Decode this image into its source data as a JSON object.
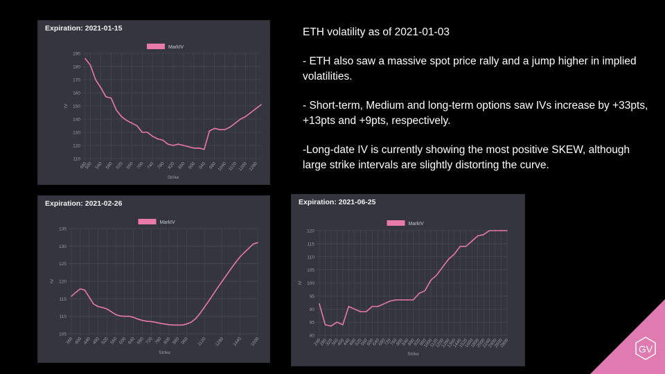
{
  "notes": {
    "title": "ETH volatility as of 2021-01-03",
    "bullets": [
      "- ETH also saw a massive spot price rally and a jump higher in implied volatilities.",
      "- Short-term, Medium and long-term options saw IVs increase by +33pts, +13pts and +9pts, respectively.",
      "-Long-date IV is currently showing the most positive SKEW, although large strike intervals are slightly distorting the curve."
    ]
  },
  "logo": {
    "text": "GV",
    "color": "#e07bb1"
  },
  "colors": {
    "line": "#e87aa8",
    "panel": "#34353f",
    "grid": "#474955",
    "tick": "#9a9ba3"
  },
  "chart_data": [
    {
      "type": "line",
      "title": "Expiration: 2021-01-15",
      "xlabel": "Strike",
      "ylabel": "IV",
      "legend": "MarkIV",
      "legend_position": "top-center",
      "grid": true,
      "ylim": [
        110,
        190
      ],
      "yticks": [
        110,
        120,
        130,
        140,
        150,
        160,
        170,
        180,
        190
      ],
      "categories": [
        "480",
        "500",
        "520",
        "540",
        "560",
        "580",
        "600",
        "620",
        "640",
        "660",
        "680",
        "700",
        "720",
        "740",
        "760",
        "780",
        "800",
        "820",
        "840",
        "860",
        "880",
        "900",
        "920",
        "940",
        "960",
        "980",
        "1000",
        "1040",
        "1080",
        "1120",
        "1160",
        "1200",
        "1240",
        "1280",
        "1320"
      ],
      "xticks": [
        "480",
        "500",
        "540",
        "580",
        "620",
        "660",
        "700",
        "740",
        "780",
        "820",
        "860",
        "900",
        "940",
        "980",
        "1040",
        "1120",
        "1200",
        "1280"
      ],
      "series": [
        {
          "name": "MarkIV",
          "values": [
            186,
            181,
            170,
            164,
            157,
            156,
            147,
            142,
            139,
            137,
            135,
            130,
            130,
            127,
            125,
            124,
            121,
            120,
            121,
            120,
            119,
            118,
            118,
            117,
            131,
            133,
            132,
            132,
            134,
            137,
            140,
            142,
            145,
            148,
            151
          ]
        }
      ]
    },
    {
      "type": "line",
      "title": "Expiration: 2021-02-26",
      "xlabel": "Strike",
      "ylabel": "IV",
      "legend": "MarkIV",
      "legend_position": "top-center",
      "grid": true,
      "ylim": [
        105,
        135
      ],
      "yticks": [
        105,
        110,
        115,
        120,
        125,
        130,
        135
      ],
      "categories": [
        "360",
        "380",
        "400",
        "420",
        "440",
        "460",
        "480",
        "500",
        "520",
        "540",
        "560",
        "580",
        "600",
        "620",
        "640",
        "660",
        "680",
        "700",
        "720",
        "740",
        "760",
        "780",
        "800",
        "840",
        "880",
        "920",
        "960",
        "1000",
        "1040",
        "1080",
        "1120",
        "1160",
        "1200",
        "1240",
        "1280",
        "1320",
        "1360",
        "1400",
        "1440",
        "1480",
        "1520",
        "1560",
        "1600"
      ],
      "xticks": [
        "360",
        "400",
        "440",
        "480",
        "520",
        "560",
        "600",
        "640",
        "680",
        "720",
        "760",
        "800",
        "880",
        "960",
        "1120",
        "1280",
        "1440",
        "1600"
      ],
      "series": [
        {
          "name": "MarkIV",
          "values": [
            115.7,
            116.8,
            117.8,
            117.5,
            115.5,
            113.5,
            112.8,
            112.5,
            112.1,
            111.3,
            110.5,
            110.1,
            110.0,
            110.0,
            109.7,
            109.2,
            108.8,
            108.6,
            108.5,
            108.3,
            108.0,
            107.8,
            107.6,
            107.5,
            107.5,
            107.5,
            107.8,
            108.3,
            109.3,
            110.8,
            112.6,
            114.4,
            116.3,
            118.2,
            120.0,
            121.8,
            123.6,
            125.3,
            126.9,
            128.2,
            129.4,
            130.6,
            131.0
          ]
        }
      ]
    },
    {
      "type": "line",
      "title": "Expiration: 2021-06-25",
      "xlabel": "Strike",
      "ylabel": "IV",
      "legend": "MarkIV",
      "legend_position": "top-center",
      "grid": true,
      "ylim": [
        80,
        120
      ],
      "yticks": [
        80,
        85,
        90,
        95,
        100,
        105,
        110,
        115,
        120
      ],
      "categories": [
        "240",
        "280",
        "320",
        "360",
        "400",
        "440",
        "480",
        "520",
        "560",
        "600",
        "640",
        "680",
        "720",
        "760",
        "800",
        "840",
        "880",
        "920",
        "960",
        "1000",
        "1120",
        "1200",
        "1280",
        "1360",
        "1440",
        "1520",
        "1600",
        "1800",
        "2000",
        "2240",
        "2400",
        "2600",
        "2800"
      ],
      "xticks": [
        "240",
        "280",
        "320",
        "360",
        "400",
        "440",
        "480",
        "520",
        "560",
        "600",
        "640",
        "680",
        "720",
        "760",
        "800",
        "840",
        "880",
        "920",
        "960",
        "1000",
        "1120",
        "1200",
        "1280",
        "1360",
        "1440",
        "1520",
        "1600",
        "1800",
        "2000",
        "2240",
        "2400",
        "2600",
        "2800"
      ],
      "series": [
        {
          "name": "MarkIV",
          "values": [
            92,
            84,
            83.5,
            85,
            84,
            91,
            90,
            89,
            89,
            91,
            91,
            92,
            93,
            93.5,
            93.5,
            93.5,
            93.5,
            96,
            97,
            101,
            103,
            106,
            109,
            111,
            114,
            114,
            116,
            118,
            118.5,
            120,
            120,
            120,
            120
          ]
        }
      ]
    }
  ]
}
